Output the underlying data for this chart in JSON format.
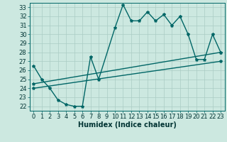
{
  "xlabel": "Humidex (Indice chaleur)",
  "background_color": "#cce8e0",
  "grid_color": "#aaccc4",
  "line_color": "#006666",
  "xlim": [
    -0.5,
    23.5
  ],
  "ylim": [
    21.5,
    33.5
  ],
  "yticks": [
    22,
    23,
    24,
    25,
    26,
    27,
    28,
    29,
    30,
    31,
    32,
    33
  ],
  "xticks": [
    0,
    1,
    2,
    3,
    4,
    5,
    6,
    7,
    8,
    9,
    10,
    11,
    12,
    13,
    14,
    15,
    16,
    17,
    18,
    19,
    20,
    21,
    22,
    23
  ],
  "series1_x": [
    0,
    1,
    2,
    3,
    4,
    5,
    6,
    7,
    8,
    10,
    11,
    12,
    13,
    14,
    15,
    16,
    17,
    18,
    19,
    20,
    21,
    22,
    23
  ],
  "series1_y": [
    26.5,
    25.0,
    24.0,
    22.7,
    22.2,
    22.0,
    22.0,
    27.5,
    25.0,
    30.7,
    33.3,
    31.5,
    31.5,
    32.5,
    31.5,
    32.2,
    31.0,
    32.0,
    30.0,
    27.2,
    27.2,
    30.0,
    28.0
  ],
  "series2_x": [
    0,
    23
  ],
  "series2_y": [
    24.5,
    28.0
  ],
  "series3_x": [
    0,
    23
  ],
  "series3_y": [
    24.0,
    27.0
  ],
  "tick_fontsize": 6.0,
  "xlabel_fontsize": 7.0
}
